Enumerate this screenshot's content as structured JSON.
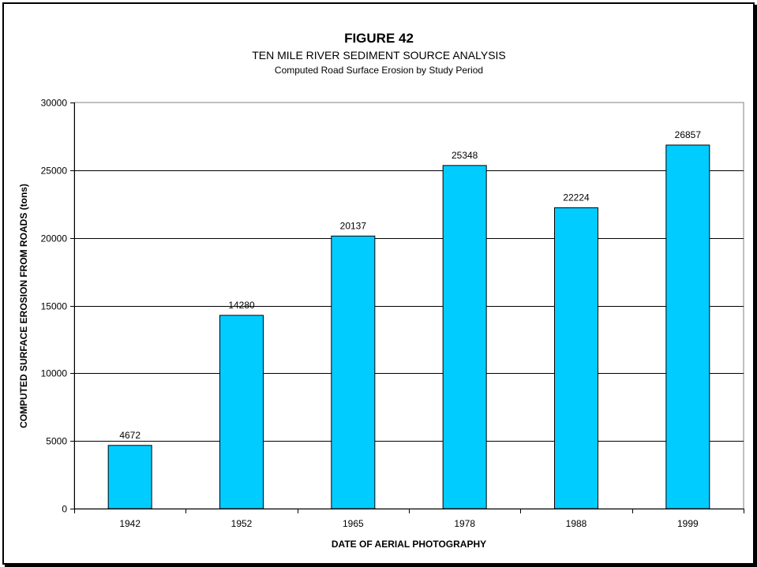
{
  "chart_data": {
    "type": "bar",
    "title": "FIGURE 42",
    "subtitle": "TEN MILE RIVER SEDIMENT SOURCE ANALYSIS",
    "subsubtitle": "Computed Road Surface Erosion by Study Period",
    "xlabel": "DATE OF AERIAL PHOTOGRAPHY",
    "ylabel": "COMPUTED SURFACE EROSION FROM ROADS (tons)",
    "categories": [
      "1942",
      "1952",
      "1965",
      "1978",
      "1988",
      "1999"
    ],
    "values": [
      4672,
      14280,
      20137,
      25348,
      22224,
      26857
    ],
    "data_labels": [
      "4672",
      "14280",
      "20137",
      "25348",
      "22224",
      "26857"
    ],
    "ylim": [
      0,
      30000
    ],
    "yticks": [
      "0",
      "5000",
      "10000",
      "15000",
      "20000",
      "25000",
      "30000"
    ],
    "grid": true,
    "legend": "none",
    "colors": {
      "bar": "#00ccff",
      "bar_stroke": "#000000",
      "grid": "#000000"
    }
  }
}
